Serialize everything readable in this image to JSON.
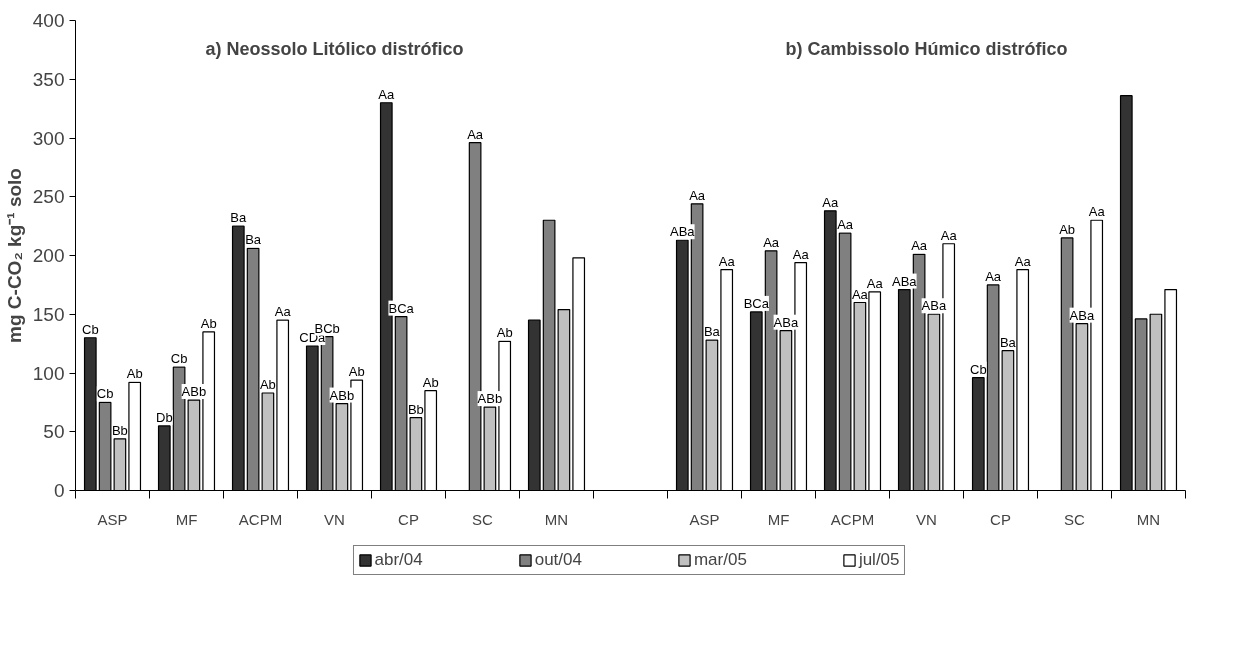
{
  "chart_data": {
    "type": "bar",
    "ylabel": "mg C-CO₂ kg⁻¹ solo",
    "annotations": [
      "a) Neossolo Litólico distrófico",
      "b) Cambissolo Húmico distrófico"
    ],
    "categories": [
      "ASP",
      "MF",
      "ACPM",
      "VN",
      "CP",
      "SC",
      "MN",
      null,
      "ASP",
      "MF",
      "ACPM",
      "VN",
      "CP",
      "SC",
      "MN"
    ],
    "series": [
      {
        "name": "abr/04",
        "color": "#333333",
        "values": [
          130,
          55,
          225,
          123,
          330,
          null,
          145,
          null,
          213,
          152,
          238,
          171,
          96,
          null,
          336
        ],
        "value_labels": [
          "Cb",
          "Db",
          "Ba",
          "CDa",
          "Aa",
          null,
          null,
          null,
          "ABa",
          "BCa",
          "Aa",
          "ABa",
          "Cb",
          null,
          null
        ]
      },
      {
        "name": "out/04",
        "color": "#808080",
        "values": [
          75,
          105,
          206,
          131,
          148,
          296,
          230,
          null,
          244,
          204,
          219,
          201,
          175,
          215,
          146
        ],
        "value_labels": [
          "Cb",
          "Cb",
          "Ba",
          "BCb",
          "BCa",
          "Aa",
          null,
          null,
          "Aa",
          "Aa",
          "Aa",
          "Aa",
          "Aa",
          "Ab",
          null
        ]
      },
      {
        "name": "mar/05",
        "color": "#c0c0c0",
        "values": [
          44,
          77,
          83,
          74,
          62,
          71,
          154,
          null,
          128,
          136,
          160,
          150,
          119,
          142,
          150
        ],
        "value_labels": [
          "Bb",
          "ABb",
          "Ab",
          "ABb",
          "Bb",
          "ABb",
          null,
          null,
          "Ba",
          "ABa",
          "Aa",
          "ABa",
          "Ba",
          "ABa",
          null
        ]
      },
      {
        "name": "jul/05",
        "color": "#ffffff",
        "values": [
          92,
          135,
          145,
          94,
          85,
          127,
          198,
          null,
          188,
          194,
          169,
          210,
          188,
          230,
          171
        ],
        "value_labels": [
          "Ab",
          "Ab",
          "Aa",
          "Ab",
          "Ab",
          "Ab",
          null,
          null,
          "Aa",
          "Aa",
          "Aa",
          "Aa",
          "Aa",
          "Aa",
          null
        ]
      }
    ],
    "ylim": [
      0,
      400
    ],
    "yticks": [
      0,
      50,
      100,
      150,
      200,
      250,
      300,
      350,
      400
    ],
    "grid": false,
    "legend": "bottom"
  }
}
